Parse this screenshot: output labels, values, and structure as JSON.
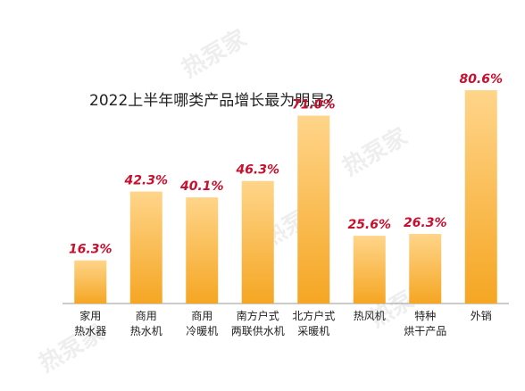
{
  "watermark": "热泵家",
  "chart_data": {
    "type": "bar",
    "title": "2022上半年哪类产品增长最为明显?",
    "xlabel": "",
    "ylabel": "",
    "ylim": [
      0,
      85
    ],
    "grid": false,
    "legend": "none",
    "categories": [
      [
        "家用",
        "热水器"
      ],
      [
        "商用",
        "热水机"
      ],
      [
        "商用",
        "冷暖机"
      ],
      [
        "南方户式",
        "两联供水机"
      ],
      [
        "北方户式",
        "采暖机"
      ],
      [
        "热风机"
      ],
      [
        "特种",
        "烘干产品"
      ],
      [
        "外销"
      ]
    ],
    "values": [
      16.3,
      42.3,
      40.1,
      46.3,
      71.0,
      25.6,
      26.3,
      80.6
    ],
    "data_labels": [
      "16.3%",
      "42.3%",
      "40.1%",
      "46.3%",
      "71.0%",
      "25.6%",
      "26.3%",
      "80.6%"
    ],
    "colors": {
      "bar_top": "#ffd58a",
      "bar_bottom": "#f5a623",
      "label": "#c8102e",
      "axis": "#999999",
      "tick_text": "#222222"
    }
  }
}
